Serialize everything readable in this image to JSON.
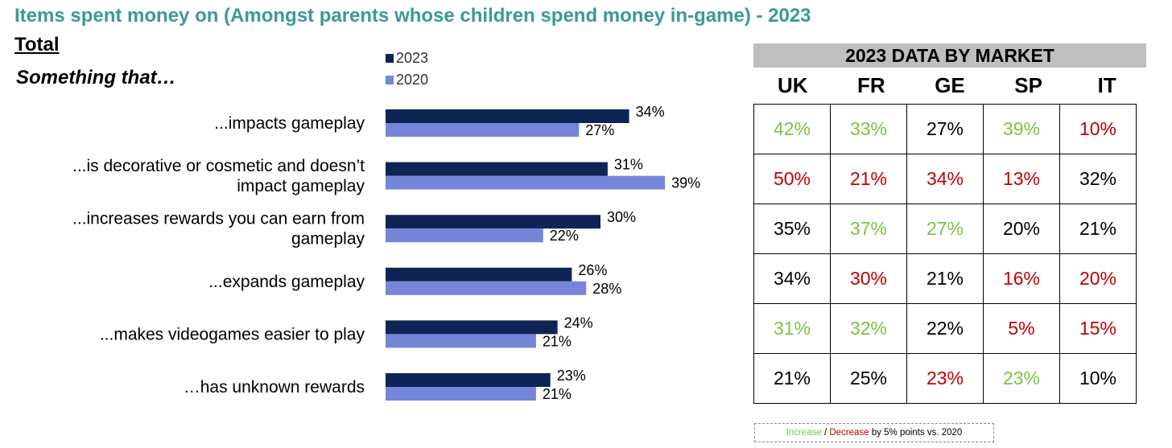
{
  "title": "Items spent money on (Amongst parents whose children spend money in-game) - 2023",
  "subtitle": "Total",
  "prompt": "Something that…",
  "colors": {
    "title": "#3a9a94",
    "series_2023": "#0e2454",
    "series_2020": "#7585d8",
    "increase": "#7cc242",
    "decrease": "#c00000",
    "neutral": "#000000"
  },
  "chart_data": {
    "type": "bar",
    "orientation": "horizontal",
    "title": "Items spent money on (Amongst parents whose children spend money in-game) - 2023",
    "xlabel": "",
    "ylabel": "",
    "xlim": [
      0,
      40
    ],
    "legend_position": "top",
    "grid": false,
    "unit": "%",
    "categories": [
      [
        "...impacts gameplay"
      ],
      [
        "...is decorative or cosmetic and doesn’t",
        "impact gameplay"
      ],
      [
        "...increases rewards you can earn from",
        "gameplay"
      ],
      [
        "...expands gameplay"
      ],
      [
        "...makes videogames easier to play"
      ],
      [
        "…has unknown rewards"
      ]
    ],
    "series": [
      {
        "name": "2023",
        "values": [
          34,
          31,
          30,
          26,
          24,
          23
        ]
      },
      {
        "name": "2020",
        "values": [
          27,
          39,
          22,
          28,
          21,
          21
        ]
      }
    ]
  },
  "market": {
    "header": "2023 DATA BY MARKET",
    "columns": [
      "UK",
      "FR",
      "GE",
      "SP",
      "IT"
    ],
    "rows": [
      [
        {
          "v": "42%",
          "s": "increase"
        },
        {
          "v": "33%",
          "s": "increase"
        },
        {
          "v": "27%",
          "s": "neutral"
        },
        {
          "v": "39%",
          "s": "increase"
        },
        {
          "v": "10%",
          "s": "decrease"
        }
      ],
      [
        {
          "v": "50%",
          "s": "decrease"
        },
        {
          "v": "21%",
          "s": "decrease"
        },
        {
          "v": "34%",
          "s": "decrease"
        },
        {
          "v": "13%",
          "s": "decrease"
        },
        {
          "v": "32%",
          "s": "neutral"
        }
      ],
      [
        {
          "v": "35%",
          "s": "neutral"
        },
        {
          "v": "37%",
          "s": "increase"
        },
        {
          "v": "27%",
          "s": "increase"
        },
        {
          "v": "20%",
          "s": "neutral"
        },
        {
          "v": "21%",
          "s": "neutral"
        }
      ],
      [
        {
          "v": "34%",
          "s": "neutral"
        },
        {
          "v": "30%",
          "s": "decrease"
        },
        {
          "v": "21%",
          "s": "neutral"
        },
        {
          "v": "16%",
          "s": "decrease"
        },
        {
          "v": "20%",
          "s": "decrease"
        }
      ],
      [
        {
          "v": "31%",
          "s": "increase"
        },
        {
          "v": "32%",
          "s": "increase"
        },
        {
          "v": "22%",
          "s": "neutral"
        },
        {
          "v": "5%",
          "s": "decrease"
        },
        {
          "v": "15%",
          "s": "decrease"
        }
      ],
      [
        {
          "v": "21%",
          "s": "neutral"
        },
        {
          "v": "25%",
          "s": "neutral"
        },
        {
          "v": "23%",
          "s": "decrease"
        },
        {
          "v": "23%",
          "s": "increase"
        },
        {
          "v": "10%",
          "s": "neutral"
        }
      ]
    ]
  },
  "note": {
    "increase": "Increase",
    "separator": " / ",
    "decrease": "Decrease",
    "rest": " by 5% points vs. 2020"
  }
}
